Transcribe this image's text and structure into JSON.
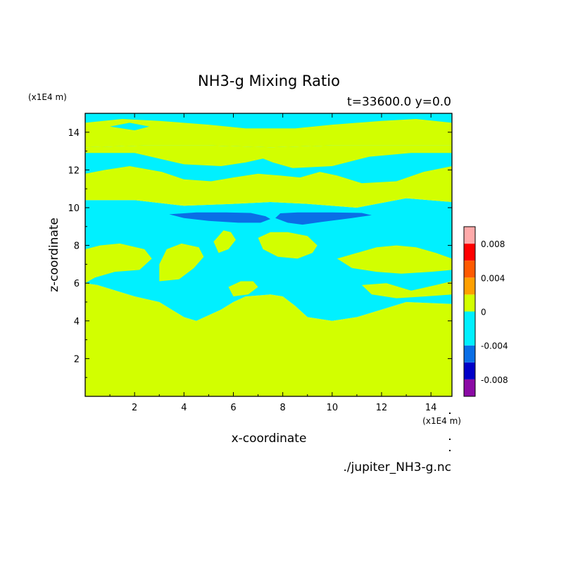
{
  "chart_data": {
    "type": "heatmap",
    "title": "NH3-g Mixing Ratio",
    "subtitle": "t=33600.0 y=0.0",
    "xlabel": "x-coordinate",
    "ylabel": "z-coordinate",
    "x_unit": "(x1E4 m)",
    "y_unit": "(x1E4 m)",
    "xlim": [
      0,
      14.85
    ],
    "ylim": [
      0,
      15
    ],
    "xticks": [
      2,
      4,
      6,
      8,
      10,
      12,
      14
    ],
    "yticks": [
      2,
      4,
      6,
      8,
      10,
      12,
      14
    ],
    "source_file": "./jupiter_NH3-g.nc",
    "colorbar": {
      "levels": [
        -0.01,
        -0.008,
        -0.006,
        -0.004,
        -0.002,
        0,
        0.002,
        0.004,
        0.006,
        0.008,
        0.01
      ],
      "colors": [
        "#8b0aa5",
        "#0000c8",
        "#0a6ee6",
        "#00f0ff",
        "#d2ff00",
        "#ffa000",
        "#ff5a00",
        "#ff0000",
        "#ffaaaa"
      ],
      "bands": [
        {
          "range": [
            -0.01,
            -0.008
          ],
          "color": "#8b0aa5"
        },
        {
          "range": [
            -0.008,
            -0.006
          ],
          "color": "#0000c8"
        },
        {
          "range": [
            -0.006,
            -0.004
          ],
          "color": "#0a6ee6"
        },
        {
          "range": [
            -0.004,
            0
          ],
          "color": "#00f0ff"
        },
        {
          "range": [
            0,
            0.002
          ],
          "color": "#d2ff00"
        },
        {
          "range": [
            0.002,
            0.004
          ],
          "color": "#ffa000"
        },
        {
          "range": [
            0.004,
            0.006
          ],
          "color": "#ff5a00"
        },
        {
          "range": [
            0.006,
            0.008
          ],
          "color": "#ff0000"
        },
        {
          "range": [
            0.008,
            0.01
          ],
          "color": "#ffaaaa"
        }
      ],
      "tick_labels": [
        {
          "value": 0.008,
          "label": "0.008"
        },
        {
          "value": 0.004,
          "label": "0.004"
        },
        {
          "value": 0,
          "label": "0"
        },
        {
          "value": -0.004,
          "label": "-0.004"
        },
        {
          "value": -0.008,
          "label": "-0.008"
        }
      ]
    },
    "field_regions": [
      {
        "name": "lower-positive-zone",
        "level": "0 to 0.002",
        "color": "#d2ff00",
        "points": [
          [
            0,
            0
          ],
          [
            14.85,
            0
          ],
          [
            14.85,
            4.9
          ],
          [
            13.0,
            5.0
          ],
          [
            12.0,
            4.6
          ],
          [
            11.0,
            4.2
          ],
          [
            10.0,
            4.0
          ],
          [
            9.0,
            4.2
          ],
          [
            8.5,
            4.8
          ],
          [
            8.0,
            5.3
          ],
          [
            7.5,
            5.4
          ],
          [
            6.5,
            5.3
          ],
          [
            6.0,
            5.0
          ],
          [
            5.5,
            4.6
          ],
          [
            4.5,
            4.0
          ],
          [
            4.0,
            4.2
          ],
          [
            3.5,
            4.6
          ],
          [
            3.0,
            5.0
          ],
          [
            2.0,
            5.3
          ],
          [
            1.5,
            5.5
          ],
          [
            1.0,
            5.7
          ],
          [
            0.5,
            5.9
          ],
          [
            0,
            6.0
          ]
        ]
      },
      {
        "name": "cyan-mid-zone",
        "level": "-0.004 to 0",
        "color": "#00f0ff",
        "points": [
          [
            0,
            6.0
          ],
          [
            0.5,
            5.9
          ],
          [
            1.0,
            5.7
          ],
          [
            1.5,
            5.5
          ],
          [
            2.0,
            5.3
          ],
          [
            3.0,
            5.0
          ],
          [
            3.5,
            4.6
          ],
          [
            4.0,
            4.2
          ],
          [
            4.5,
            4.0
          ],
          [
            5.5,
            4.6
          ],
          [
            6.0,
            5.0
          ],
          [
            6.5,
            5.3
          ],
          [
            7.5,
            5.4
          ],
          [
            8.0,
            5.3
          ],
          [
            8.5,
            4.8
          ],
          [
            9.0,
            4.2
          ],
          [
            10.0,
            4.0
          ],
          [
            11.0,
            4.2
          ],
          [
            12.0,
            4.6
          ],
          [
            13.0,
            5.0
          ],
          [
            14.85,
            4.9
          ],
          [
            14.85,
            10.3
          ],
          [
            13,
            10.5
          ],
          [
            11,
            10.0
          ],
          [
            9,
            10.2
          ],
          [
            7.5,
            10.3
          ],
          [
            6,
            10.2
          ],
          [
            4,
            10.1
          ],
          [
            2,
            10.4
          ],
          [
            0,
            10.4
          ]
        ]
      },
      {
        "name": "left-mid-blob",
        "level": "0 to 0.002",
        "color": "#d2ff00",
        "points": [
          [
            0,
            6.0
          ],
          [
            0.4,
            6.3
          ],
          [
            1.2,
            6.6
          ],
          [
            2.2,
            6.7
          ],
          [
            2.7,
            7.3
          ],
          [
            2.4,
            7.8
          ],
          [
            1.4,
            8.1
          ],
          [
            0.6,
            8.0
          ],
          [
            0,
            7.8
          ]
        ]
      },
      {
        "name": "center-left-mid-blob",
        "level": "0 to 0.002",
        "color": "#d2ff00",
        "points": [
          [
            3.0,
            6.1
          ],
          [
            3.8,
            6.2
          ],
          [
            4.4,
            6.8
          ],
          [
            4.8,
            7.4
          ],
          [
            4.6,
            7.9
          ],
          [
            3.9,
            8.1
          ],
          [
            3.3,
            7.8
          ],
          [
            3.0,
            7.0
          ]
        ]
      },
      {
        "name": "center-small-blob",
        "level": "0 to 0.002",
        "color": "#d2ff00",
        "points": [
          [
            5.4,
            7.6
          ],
          [
            5.8,
            7.8
          ],
          [
            6.1,
            8.3
          ],
          [
            5.9,
            8.7
          ],
          [
            5.6,
            8.8
          ],
          [
            5.2,
            8.2
          ]
        ]
      },
      {
        "name": "center-right-mid-blob",
        "level": "0 to 0.002",
        "color": "#d2ff00",
        "points": [
          [
            7.0,
            8.4
          ],
          [
            7.5,
            8.7
          ],
          [
            8.2,
            8.7
          ],
          [
            9.0,
            8.5
          ],
          [
            9.4,
            8.0
          ],
          [
            9.2,
            7.6
          ],
          [
            8.6,
            7.3
          ],
          [
            7.8,
            7.4
          ],
          [
            7.2,
            7.8
          ]
        ]
      },
      {
        "name": "right-mid-blob",
        "level": "0 to 0.002",
        "color": "#d2ff00",
        "points": [
          [
            10.2,
            7.3
          ],
          [
            11.0,
            7.6
          ],
          [
            11.8,
            7.9
          ],
          [
            12.6,
            8.0
          ],
          [
            13.4,
            7.9
          ],
          [
            14.2,
            7.6
          ],
          [
            14.85,
            7.3
          ],
          [
            14.85,
            6.7
          ],
          [
            14.0,
            6.6
          ],
          [
            12.8,
            6.5
          ],
          [
            11.8,
            6.6
          ],
          [
            10.8,
            6.8
          ]
        ]
      },
      {
        "name": "right-lower-arm",
        "level": "0 to 0.002",
        "color": "#d2ff00",
        "points": [
          [
            11.2,
            5.9
          ],
          [
            12.2,
            6.0
          ],
          [
            13.2,
            5.6
          ],
          [
            14.2,
            5.9
          ],
          [
            14.85,
            6.1
          ],
          [
            14.85,
            5.4
          ],
          [
            13.8,
            5.3
          ],
          [
            12.6,
            5.2
          ],
          [
            11.6,
            5.4
          ]
        ]
      },
      {
        "name": "center-lower-arm",
        "level": "0 to 0.002",
        "color": "#d2ff00",
        "points": [
          [
            6.0,
            5.3
          ],
          [
            6.6,
            5.4
          ],
          [
            7.0,
            5.8
          ],
          [
            6.8,
            6.1
          ],
          [
            6.3,
            6.1
          ],
          [
            5.8,
            5.8
          ]
        ]
      },
      {
        "name": "upper-band",
        "level": "0 to 0.002",
        "color": "#d2ff00",
        "points": [
          [
            0,
            10.4
          ],
          [
            2,
            10.4
          ],
          [
            4,
            10.1
          ],
          [
            6,
            10.2
          ],
          [
            7.5,
            10.3
          ],
          [
            9,
            10.2
          ],
          [
            11,
            10.0
          ],
          [
            13,
            10.5
          ],
          [
            14.85,
            10.3
          ],
          [
            14.85,
            13.3
          ],
          [
            12.5,
            13.3
          ],
          [
            10,
            13.3
          ],
          [
            7.5,
            13.2
          ],
          [
            5,
            13.3
          ],
          [
            2.5,
            13.3
          ],
          [
            0,
            13.2
          ]
        ]
      },
      {
        "name": "upper-cyan-arc",
        "level": "-0.004 to 0",
        "color": "#00f0ff",
        "points": [
          [
            0,
            12.9
          ],
          [
            2,
            12.9
          ],
          [
            4,
            12.3
          ],
          [
            5.5,
            12.2
          ],
          [
            6.5,
            12.4
          ],
          [
            7.2,
            12.6
          ],
          [
            7.6,
            12.4
          ],
          [
            8.4,
            12.1
          ],
          [
            10,
            12.2
          ],
          [
            11.5,
            12.7
          ],
          [
            13.2,
            12.9
          ],
          [
            14.85,
            12.9
          ],
          [
            14.85,
            12.2
          ],
          [
            13.7,
            11.9
          ],
          [
            12.6,
            11.4
          ],
          [
            11.2,
            11.3
          ],
          [
            10.2,
            11.7
          ],
          [
            9.5,
            11.9
          ],
          [
            8.7,
            11.6
          ],
          [
            7.9,
            11.7
          ],
          [
            7.0,
            11.8
          ],
          [
            6.0,
            11.6
          ],
          [
            5.1,
            11.4
          ],
          [
            4.0,
            11.5
          ],
          [
            3.1,
            11.9
          ],
          [
            1.8,
            12.2
          ],
          [
            0.8,
            12.0
          ],
          [
            0,
            11.8
          ]
        ]
      },
      {
        "name": "top-band",
        "level": "-0.004 to 0",
        "color": "#00f0ff",
        "points": [
          [
            0,
            13.2
          ],
          [
            2.5,
            13.3
          ],
          [
            5,
            13.3
          ],
          [
            7.5,
            13.2
          ],
          [
            10,
            13.3
          ],
          [
            12.5,
            13.3
          ],
          [
            14.85,
            13.3
          ],
          [
            14.85,
            15
          ],
          [
            0,
            15
          ]
        ]
      },
      {
        "name": "top-yellow-strip",
        "level": "0 to 0.002",
        "color": "#d2ff00",
        "points": [
          [
            0,
            14.5
          ],
          [
            1.5,
            14.7
          ],
          [
            3.0,
            14.6
          ],
          [
            5.0,
            14.4
          ],
          [
            6.5,
            14.2
          ],
          [
            8.5,
            14.2
          ],
          [
            10.0,
            14.4
          ],
          [
            12.0,
            14.6
          ],
          [
            13.4,
            14.7
          ],
          [
            14.85,
            14.5
          ],
          [
            14.85,
            13.3
          ],
          [
            12.5,
            13.3
          ],
          [
            10,
            13.3
          ],
          [
            7.5,
            13.2
          ],
          [
            5,
            13.3
          ],
          [
            2.5,
            13.3
          ],
          [
            0,
            13.2
          ]
        ]
      },
      {
        "name": "top-cyan-holes",
        "level": "-0.004 to 0",
        "color": "#00f0ff",
        "points": [
          [
            1.0,
            14.3
          ],
          [
            1.8,
            14.5
          ],
          [
            2.6,
            14.3
          ],
          [
            2.0,
            14.1
          ]
        ]
      },
      {
        "name": "left-dark-lens",
        "level": "-0.006 to -0.004",
        "color": "#0a6ee6",
        "points": [
          [
            3.4,
            9.65
          ],
          [
            4.5,
            9.75
          ],
          [
            5.7,
            9.75
          ],
          [
            6.7,
            9.72
          ],
          [
            7.3,
            9.55
          ],
          [
            7.5,
            9.4
          ],
          [
            7.1,
            9.2
          ],
          [
            6.2,
            9.2
          ],
          [
            5.0,
            9.3
          ],
          [
            4.0,
            9.45
          ]
        ]
      },
      {
        "name": "right-dark-lens",
        "level": "-0.006 to -0.004",
        "color": "#0a6ee6",
        "points": [
          [
            7.7,
            9.45
          ],
          [
            7.9,
            9.7
          ],
          [
            8.6,
            9.75
          ],
          [
            10.0,
            9.75
          ],
          [
            11.2,
            9.72
          ],
          [
            11.6,
            9.6
          ],
          [
            10.8,
            9.45
          ],
          [
            9.6,
            9.25
          ],
          [
            8.8,
            9.1
          ],
          [
            8.2,
            9.2
          ]
        ]
      }
    ]
  }
}
